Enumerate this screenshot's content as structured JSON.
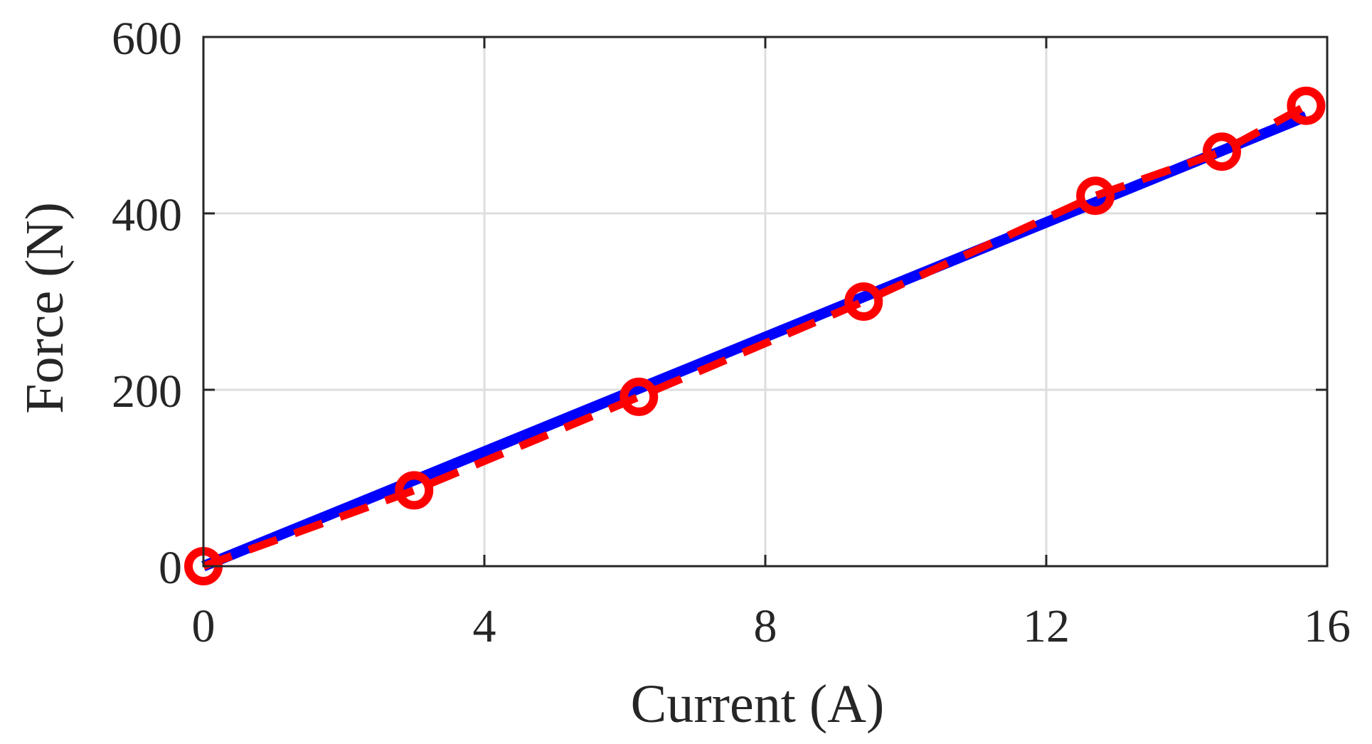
{
  "chart_data": {
    "type": "line",
    "title": "",
    "xlabel": "Current (A)",
    "ylabel": "Force (N)",
    "xlim": [
      0,
      16
    ],
    "ylim": [
      0,
      600
    ],
    "xticks": [
      0,
      4,
      8,
      12,
      16
    ],
    "yticks": [
      0,
      200,
      400,
      600
    ],
    "grid": true,
    "legend": "none",
    "series": [
      {
        "style": "solid",
        "color": "#0000ff",
        "x": [
          0,
          15.7
        ],
        "y": [
          0,
          510
        ]
      },
      {
        "style": "dashed-with-circle-markers",
        "color": "#ff0000",
        "x": [
          0,
          3.0,
          6.2,
          9.4,
          12.7,
          14.5,
          15.7
        ],
        "y": [
          0,
          86,
          192,
          300,
          420,
          470,
          522
        ]
      }
    ]
  }
}
